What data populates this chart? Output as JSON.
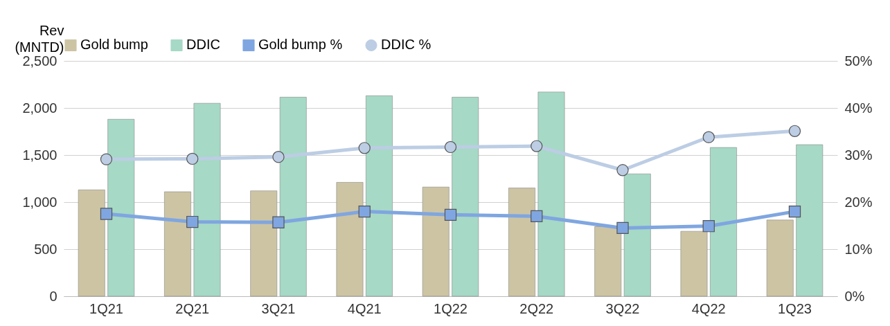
{
  "chart_data": {
    "type": "bar",
    "ylabel": "Rev\n(MNTD)",
    "categories": [
      "1Q21",
      "2Q21",
      "3Q21",
      "4Q21",
      "1Q22",
      "2Q22",
      "3Q22",
      "4Q22",
      "1Q23"
    ],
    "series": [
      {
        "name": "Gold bump",
        "color": "#cdc4a4",
        "values": [
          1130,
          1110,
          1120,
          1210,
          1160,
          1150,
          740,
          690,
          810
        ]
      },
      {
        "name": "DDIC",
        "color": "#a6d9c6",
        "values": [
          1880,
          2050,
          2115,
          2130,
          2115,
          2170,
          1300,
          1580,
          1610
        ]
      },
      {
        "name": "Gold bump %",
        "type": "line",
        "axis": "y2",
        "marker": "square",
        "color": "#7fa6e0",
        "values": [
          17.5,
          15.8,
          15.7,
          18.0,
          17.3,
          17.0,
          14.5,
          14.9,
          18.0
        ]
      },
      {
        "name": "DDIC %",
        "type": "line",
        "axis": "y2",
        "marker": "circle",
        "color": "#bccde4",
        "values": [
          29.1,
          29.2,
          29.6,
          31.5,
          31.7,
          31.9,
          26.8,
          33.8,
          35.1
        ]
      }
    ],
    "ylim": [
      0,
      2500
    ],
    "yticks": [
      {
        "value": 0,
        "label": "0"
      },
      {
        "value": 500,
        "label": "500"
      },
      {
        "value": 1000,
        "label": "1,000"
      },
      {
        "value": 1500,
        "label": "1,500"
      },
      {
        "value": 2000,
        "label": "2,000"
      },
      {
        "value": 2500,
        "label": "2,500"
      }
    ],
    "y2lim": [
      0,
      50
    ],
    "y2ticks": [
      {
        "value": 0,
        "label": "0%"
      },
      {
        "value": 10,
        "label": "10%"
      },
      {
        "value": 20,
        "label": "20%"
      },
      {
        "value": 30,
        "label": "30%"
      },
      {
        "value": 40,
        "label": "40%"
      },
      {
        "value": 50,
        "label": "50%"
      }
    ],
    "grid": "y",
    "legend": "top"
  }
}
